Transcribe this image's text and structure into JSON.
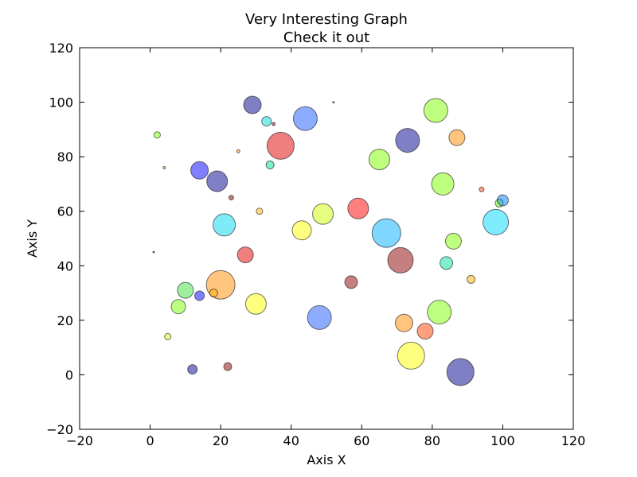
{
  "chart_data": {
    "type": "scatter",
    "title": "Very Interesting Graph",
    "subtitle": "Check it out",
    "xlabel": "Axis X",
    "ylabel": "Axis Y",
    "xlim": [
      -20,
      120
    ],
    "ylim": [
      -20,
      120
    ],
    "xticks": [
      -20,
      0,
      20,
      40,
      60,
      80,
      100,
      120
    ],
    "yticks": [
      -20,
      0,
      20,
      40,
      60,
      80,
      100,
      120
    ],
    "grid": false,
    "points": [
      {
        "x": 29,
        "y": 99,
        "size": 11,
        "color": "#00008b"
      },
      {
        "x": 44,
        "y": 94,
        "size": 15,
        "color": "#1e5aff"
      },
      {
        "x": 33,
        "y": 93,
        "size": 6,
        "color": "#00d8d8"
      },
      {
        "x": 35,
        "y": 92,
        "size": 2,
        "color": "#8b0000"
      },
      {
        "x": 52,
        "y": 100,
        "size": 1,
        "color": "#8b0000"
      },
      {
        "x": 2,
        "y": 88,
        "size": 4,
        "color": "#80ff00"
      },
      {
        "x": 37,
        "y": 84,
        "size": 17,
        "color": "#e00000"
      },
      {
        "x": 25,
        "y": 82,
        "size": 2,
        "color": "#ff8c00"
      },
      {
        "x": 34,
        "y": 77,
        "size": 5,
        "color": "#00e08c"
      },
      {
        "x": 4,
        "y": 76,
        "size": 1.5,
        "color": "#ff8c00"
      },
      {
        "x": 14,
        "y": 75,
        "size": 11,
        "color": "#0000ff"
      },
      {
        "x": 19,
        "y": 71,
        "size": 13,
        "color": "#00008b"
      },
      {
        "x": 23,
        "y": 65,
        "size": 3,
        "color": "#8b0000"
      },
      {
        "x": 31,
        "y": 60,
        "size": 4,
        "color": "#ffb000"
      },
      {
        "x": 21,
        "y": 55,
        "size": 14,
        "color": "#00d8f0"
      },
      {
        "x": 1,
        "y": 45,
        "size": 1,
        "color": "#000080"
      },
      {
        "x": 27,
        "y": 44,
        "size": 10,
        "color": "#e00000"
      },
      {
        "x": 20,
        "y": 33,
        "size": 18,
        "color": "#ff8c00"
      },
      {
        "x": 10,
        "y": 31,
        "size": 10,
        "color": "#40e040"
      },
      {
        "x": 18,
        "y": 30,
        "size": 5,
        "color": "#ffb000"
      },
      {
        "x": 14,
        "y": 29,
        "size": 6,
        "color": "#0000ff"
      },
      {
        "x": 8,
        "y": 25,
        "size": 9,
        "color": "#80ff00"
      },
      {
        "x": 30,
        "y": 26,
        "size": 13,
        "color": "#ffff00"
      },
      {
        "x": 5,
        "y": 14,
        "size": 4,
        "color": "#d0ff00"
      },
      {
        "x": 12,
        "y": 2,
        "size": 6,
        "color": "#00008b"
      },
      {
        "x": 22,
        "y": 3,
        "size": 5,
        "color": "#8b0000"
      },
      {
        "x": 43,
        "y": 53,
        "size": 12,
        "color": "#ffff00"
      },
      {
        "x": 49,
        "y": 59,
        "size": 13,
        "color": "#d0ff00"
      },
      {
        "x": 59,
        "y": 61,
        "size": 13,
        "color": "#ff0000"
      },
      {
        "x": 48,
        "y": 21,
        "size": 15,
        "color": "#1e5aff"
      },
      {
        "x": 57,
        "y": 34,
        "size": 8,
        "color": "#8b0000"
      },
      {
        "x": 65,
        "y": 79,
        "size": 13,
        "color": "#80ff00"
      },
      {
        "x": 73,
        "y": 86,
        "size": 15,
        "color": "#00008b"
      },
      {
        "x": 81,
        "y": 97,
        "size": 15,
        "color": "#80ff00"
      },
      {
        "x": 87,
        "y": 87,
        "size": 10,
        "color": "#ff8c00"
      },
      {
        "x": 83,
        "y": 70,
        "size": 14,
        "color": "#80ff00"
      },
      {
        "x": 67,
        "y": 52,
        "size": 18,
        "color": "#00b0ff"
      },
      {
        "x": 71,
        "y": 42,
        "size": 16,
        "color": "#8b0000"
      },
      {
        "x": 86,
        "y": 49,
        "size": 10,
        "color": "#80ff00"
      },
      {
        "x": 84,
        "y": 41,
        "size": 8,
        "color": "#00e0a0"
      },
      {
        "x": 91,
        "y": 35,
        "size": 5,
        "color": "#ffb000"
      },
      {
        "x": 72,
        "y": 19,
        "size": 11,
        "color": "#ff8c00"
      },
      {
        "x": 78,
        "y": 16,
        "size": 10,
        "color": "#ff4000"
      },
      {
        "x": 82,
        "y": 23,
        "size": 15,
        "color": "#80ff00"
      },
      {
        "x": 74,
        "y": 7,
        "size": 17,
        "color": "#ffff00"
      },
      {
        "x": 88,
        "y": 1,
        "size": 17,
        "color": "#00008b"
      },
      {
        "x": 94,
        "y": 68,
        "size": 3,
        "color": "#ff4000"
      },
      {
        "x": 98,
        "y": 56,
        "size": 16,
        "color": "#00d8ff"
      },
      {
        "x": 99,
        "y": 63,
        "size": 5,
        "color": "#80ff00"
      },
      {
        "x": 100,
        "y": 64,
        "size": 7,
        "color": "#0080ff"
      }
    ]
  }
}
